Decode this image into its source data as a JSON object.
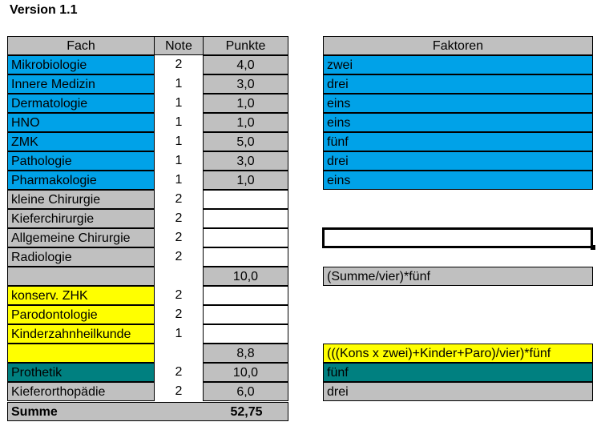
{
  "title": "Version 1.1",
  "headers": {
    "fach": "Fach",
    "note": "Note",
    "punkte": "Punkte",
    "faktoren": "Faktoren"
  },
  "colors": {
    "blue": "#00a2e8",
    "gray": "#c0c0c0",
    "yellow": "#ffff00",
    "teal": "#008080"
  },
  "rows": [
    {
      "fach": "Mikrobiologie",
      "note": "2",
      "punkte": "4,0",
      "faktor": "zwei",
      "color": "blue"
    },
    {
      "fach": "Innere Medizin",
      "note": "1",
      "punkte": "3,0",
      "faktor": "drei",
      "color": "blue"
    },
    {
      "fach": "Dermatologie",
      "note": "1",
      "punkte": "1,0",
      "faktor": "eins",
      "color": "blue"
    },
    {
      "fach": "HNO",
      "note": "1",
      "punkte": "1,0",
      "faktor": "eins",
      "color": "blue"
    },
    {
      "fach": "ZMK",
      "note": "1",
      "punkte": "5,0",
      "faktor": "fünf",
      "color": "blue"
    },
    {
      "fach": "Pathologie",
      "note": "1",
      "punkte": "3,0",
      "faktor": "drei",
      "color": "blue"
    },
    {
      "fach": "Pharmakologie",
      "note": "1",
      "punkte": "1,0",
      "faktor": "eins",
      "color": "blue"
    },
    {
      "fach": "kleine Chirurgie",
      "note": "2",
      "punkte": "",
      "faktor": null,
      "color": "gray"
    },
    {
      "fach": "Kieferchirurgie",
      "note": "2",
      "punkte": "",
      "faktor": null,
      "color": "gray"
    },
    {
      "fach": "Allgemeine Chirurgie",
      "note": "2",
      "punkte": "",
      "faktor": "",
      "color": "gray"
    },
    {
      "fach": "Radiologie",
      "note": "2",
      "punkte": "",
      "faktor": null,
      "color": "gray"
    },
    {
      "fach": "",
      "note": "",
      "punkte": "10,0",
      "faktor": "(Summe/vier)*fünf",
      "color": "gray"
    },
    {
      "fach": "konserv. ZHK",
      "note": "2",
      "punkte": "",
      "faktor": null,
      "color": "yel"
    },
    {
      "fach": "Parodontologie",
      "note": "2",
      "punkte": "",
      "faktor": null,
      "color": "yel"
    },
    {
      "fach": "Kinderzahnheilkunde",
      "note": "1",
      "punkte": "",
      "faktor": null,
      "color": "yel"
    },
    {
      "fach": "",
      "note": "",
      "punkte": "8,8",
      "faktor": "(((Kons x zwei)+Kinder+Paro)/vier)*fünf",
      "color": "yel"
    },
    {
      "fach": "Prothetik",
      "note": "2",
      "punkte": "10,0",
      "faktor": "fünf",
      "color": "teal"
    },
    {
      "fach": "Kieferorthopädie",
      "note": "2",
      "punkte": "6,0",
      "faktor": "drei",
      "color": "gray"
    }
  ],
  "summe": {
    "label": "Summe",
    "value": "52,75"
  }
}
